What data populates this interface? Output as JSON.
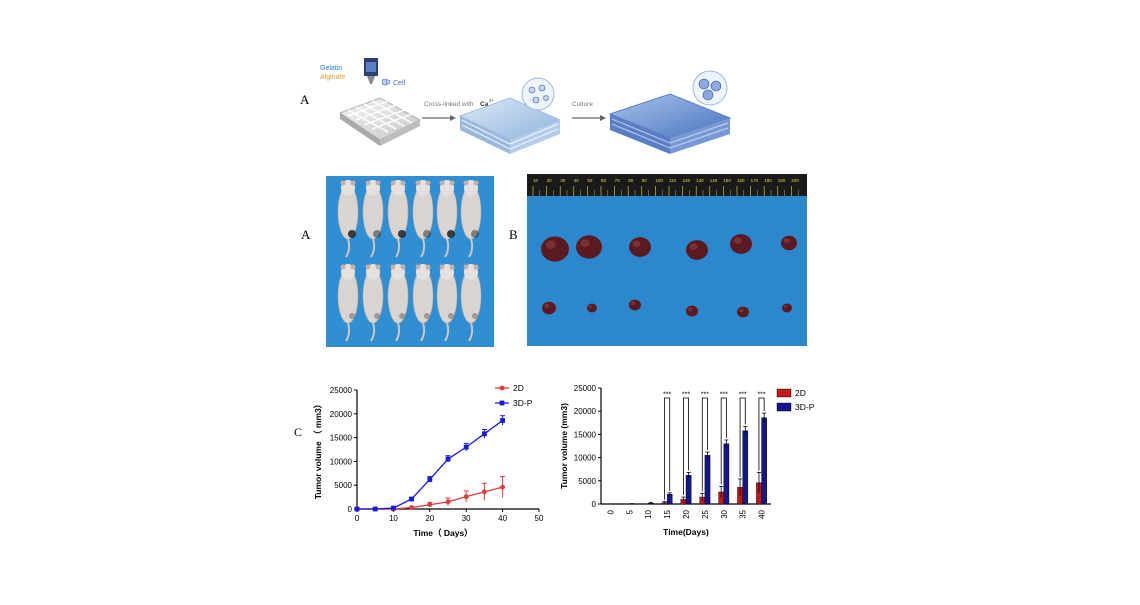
{
  "schematic": {
    "panel_label": "A",
    "gelatin": "Gelatin",
    "alginate": "Alginate",
    "cell": "Cell",
    "crosslink": "Cross-linked with",
    "ca": "Ca",
    "ca_sup": "2+",
    "culture": "Culture"
  },
  "photo_a": {
    "panel_label": "A"
  },
  "photo_b": {
    "panel_label": "B",
    "ruler_ticks": [
      "10",
      "20",
      "30",
      "40",
      "50",
      "60",
      "70",
      "80",
      "90",
      "100",
      "110",
      "120",
      "130",
      "140",
      "150",
      "160",
      "170",
      "180",
      "190",
      "200"
    ]
  },
  "panel_c_label": "C",
  "colors": {
    "2D": "#e23a3a",
    "3D-P": "#1a1adb",
    "bar2D": "#c21a1a",
    "bar3DP": "#15158c",
    "blue_bg": "#2f8fd2"
  },
  "chart_data": [
    {
      "type": "line",
      "xlabel": "Time（ Days）",
      "ylabel": "Tumor volume （ mm3）",
      "xlim": [
        0,
        50
      ],
      "ylim": [
        0,
        25000
      ],
      "xticks": [
        "0",
        "10",
        "20",
        "30",
        "40",
        "50"
      ],
      "yticks": [
        "0",
        "5000",
        "10000",
        "15000",
        "20000",
        "25000"
      ],
      "legend": "top-right",
      "x": [
        0,
        5,
        10,
        15,
        20,
        25,
        30,
        35,
        40
      ],
      "series": [
        {
          "name": "2D",
          "values": [
            0,
            0,
            0,
            300,
            900,
            1500,
            2600,
            3600,
            4600
          ],
          "errors": [
            0,
            0,
            0,
            200,
            500,
            800,
            1200,
            1800,
            2200
          ]
        },
        {
          "name": "3D-P",
          "values": [
            0,
            0,
            200,
            2100,
            6200,
            10500,
            13000,
            15800,
            18600
          ],
          "errors": [
            0,
            0,
            100,
            300,
            600,
            700,
            800,
            900,
            1000
          ]
        }
      ]
    },
    {
      "type": "bar",
      "xlabel": "Time(Days)",
      "ylabel": "Tumor volume (mm3)",
      "ylim": [
        0,
        25000
      ],
      "yticks": [
        "0",
        "5000",
        "10000",
        "15000",
        "20000",
        "25000"
      ],
      "categories": [
        "0",
        "5",
        "10",
        "15",
        "20",
        "25",
        "30",
        "35",
        "40"
      ],
      "legend": "top-right",
      "significance": [
        "",
        "",
        "",
        "***",
        "***",
        "***",
        "***",
        "***",
        "***"
      ],
      "series": [
        {
          "name": "2D",
          "values": [
            0,
            0,
            0,
            300,
            1000,
            1500,
            2600,
            3600,
            4600
          ],
          "errors": [
            0,
            0,
            0,
            200,
            500,
            800,
            1200,
            1800,
            2200
          ]
        },
        {
          "name": "3D-P",
          "values": [
            0,
            50,
            200,
            2100,
            6200,
            10500,
            13000,
            15800,
            18600
          ],
          "errors": [
            0,
            30,
            100,
            300,
            600,
            700,
            800,
            900,
            1000
          ]
        }
      ]
    }
  ]
}
